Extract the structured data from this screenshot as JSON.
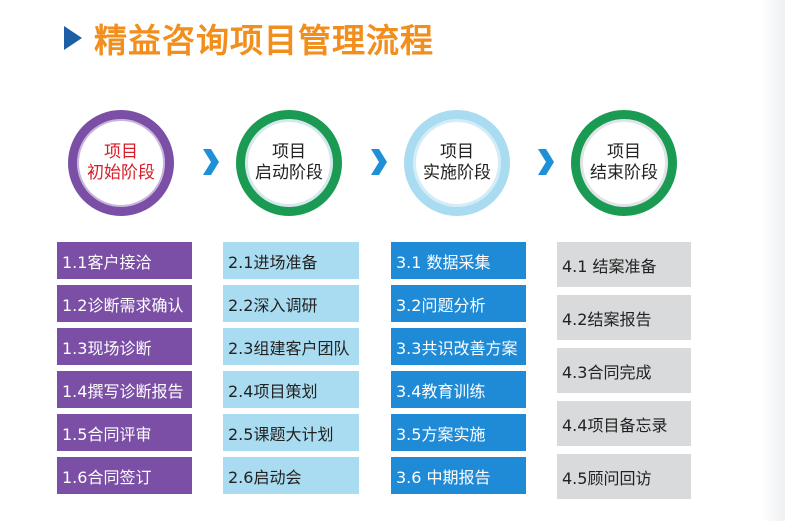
{
  "title": "精益咨询项目管理流程",
  "colors": {
    "title_text": "#f28e1c",
    "title_arrow": "#1c5fa6",
    "chevron": "#1e90d8",
    "stage1_ring": "#7b4fa6",
    "stage1_fill": "#7b4fa6",
    "stage1_text": "#d71d2a",
    "stage2_ring": "#1a9a52",
    "stage2_fill": "#a9dcf0",
    "stage3_ring": "#1a9a52",
    "stage3_fill": "#1f8ad6",
    "stage4_ring": "#1a9a52",
    "stage4_fill": "#d9dadb"
  },
  "stages": [
    {
      "label": "项目\n初始阶段",
      "steps": [
        "1.1客户接洽",
        "1.2诊断需求确认",
        "1.3现场诊断",
        "1.4撰写诊断报告",
        "1.5合同评审",
        "1.6合同签订"
      ]
    },
    {
      "label": "项目\n启动阶段",
      "steps": [
        "2.1进场准备",
        "2.2深入调研",
        "2.3组建客户团队",
        "2.4项目策划",
        "2.5课题大计划",
        "2.6启动会"
      ]
    },
    {
      "label": "项目\n实施阶段",
      "steps": [
        "3.1 数据采集",
        "3.2问题分析",
        "3.3共识改善方案",
        "3.4教育训练",
        "3.5方案实施",
        "3.6 中期报告"
      ]
    },
    {
      "label": "项目\n结束阶段",
      "steps": [
        "4.1 结案准备",
        "4.2结案报告",
        "4.3合同完成",
        "4.4项目备忘录",
        "4.5顾问回访"
      ]
    }
  ]
}
